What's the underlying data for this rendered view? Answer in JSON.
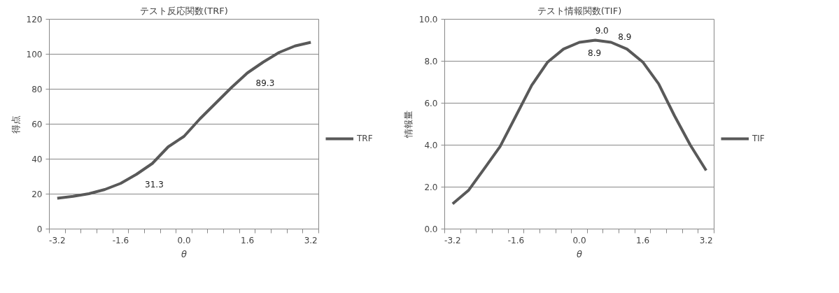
{
  "chart_data": [
    {
      "type": "line",
      "title": "テスト反応関数(TRF)",
      "xlabel": "θ",
      "ylabel": "得点",
      "categories": [
        "-3.2",
        null,
        null,
        null,
        "-1.6",
        null,
        null,
        null,
        "0.0",
        null,
        null,
        null,
        "1.6",
        null,
        null,
        null,
        "3.2"
      ],
      "series": [
        {
          "name": "TRF",
          "color": "#595959",
          "values": [
            17.6,
            18.7,
            20.2,
            22.6,
            26.1,
            31.3,
            37.5,
            47,
            53,
            63,
            72,
            81,
            89.3,
            95.5,
            101,
            104.7,
            106.8
          ],
          "value_labels": [
            null,
            null,
            null,
            null,
            null,
            "31.3",
            null,
            null,
            null,
            null,
            null,
            null,
            "89.3",
            null,
            null,
            null,
            null
          ]
        }
      ],
      "ylim": [
        0,
        120
      ],
      "yticks": [
        0,
        20,
        40,
        60,
        80,
        100,
        120
      ],
      "grid": "y",
      "legend": "right",
      "marker": "none",
      "line_style": "solid"
    },
    {
      "type": "line",
      "title": "テスト情報関数(TIF)",
      "xlabel": "θ",
      "ylabel": "情報量",
      "categories": [
        "-3.2",
        null,
        null,
        null,
        "-1.6",
        null,
        null,
        null,
        "0.0",
        null,
        null,
        null,
        "1.6",
        null,
        null,
        null,
        "3.2"
      ],
      "series": [
        {
          "name": "TIF",
          "color": "#595959",
          "values": [
            1.2,
            1.84,
            2.88,
            3.94,
            5.4,
            6.86,
            7.96,
            8.58,
            8.9,
            9.0,
            8.9,
            8.58,
            7.96,
            6.92,
            5.4,
            4.0,
            2.79
          ],
          "value_labels": [
            null,
            null,
            null,
            null,
            null,
            null,
            null,
            null,
            "8.9",
            "9.0",
            "8.9",
            null,
            null,
            null,
            null,
            null,
            null
          ]
        }
      ],
      "ylim": [
        0,
        10
      ],
      "yticks": [
        {
          "value": 0,
          "label": "0.0"
        },
        {
          "value": 2,
          "label": "2.0"
        },
        {
          "value": 4,
          "label": "4.0"
        },
        {
          "value": 6,
          "label": "6.0"
        },
        {
          "value": 8,
          "label": "8.0"
        },
        {
          "value": 10,
          "label": "10.0"
        }
      ],
      "grid": "y",
      "legend": "right",
      "marker": "none",
      "line_style": "solid"
    }
  ]
}
